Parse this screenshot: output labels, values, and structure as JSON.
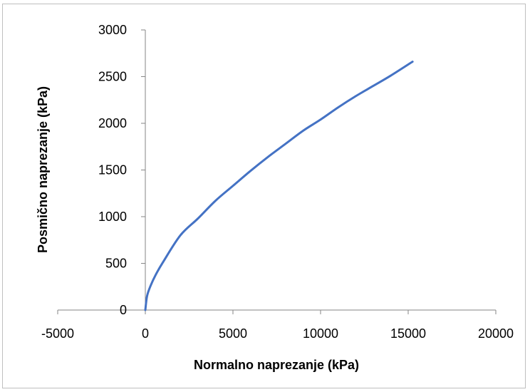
{
  "chart_data": {
    "type": "line",
    "title": "",
    "xlabel": "Normalno naprezanje (kPa)",
    "ylabel": "Posmično naprezanje (kPa)",
    "xlim": [
      -5000,
      20000
    ],
    "ylim": [
      0,
      3000
    ],
    "x_ticks": [
      "-5000",
      "0",
      "5000",
      "10000",
      "15000",
      "20000"
    ],
    "y_ticks": [
      "0",
      "500",
      "1000",
      "1500",
      "2000",
      "2500",
      "3000"
    ],
    "grid": false,
    "legend": "none",
    "series": [
      {
        "color": "#4472c4",
        "x": [
          0,
          100,
          300,
          600,
          1000,
          2000,
          3000,
          4000,
          5000,
          6000,
          7000,
          8000,
          9000,
          10000,
          11000,
          12000,
          13000,
          14000,
          15250
        ],
        "y": [
          0,
          150,
          260,
          380,
          510,
          800,
          980,
          1170,
          1330,
          1490,
          1640,
          1780,
          1920,
          2040,
          2170,
          2290,
          2400,
          2510,
          2660
        ]
      }
    ]
  }
}
